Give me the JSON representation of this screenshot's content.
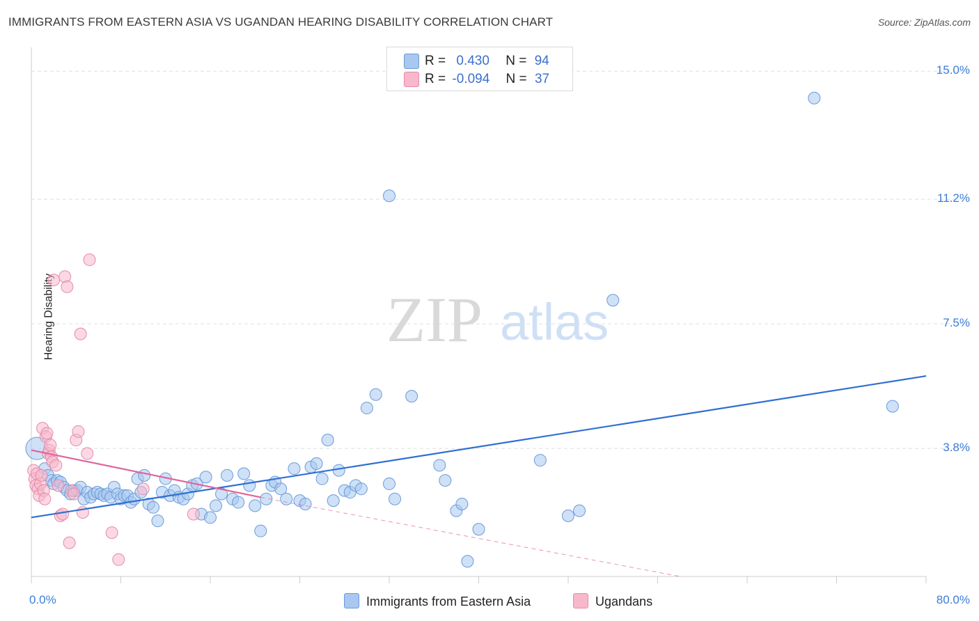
{
  "chart_data": {
    "type": "scatter",
    "title": "IMMIGRANTS FROM EASTERN ASIA VS UGANDAN HEARING DISABILITY CORRELATION CHART",
    "source": "Source: ZipAtlas.com",
    "watermark": {
      "zip": "ZIP",
      "atlas": "atlas"
    },
    "ylabel": "Hearing Disability",
    "xlim": [
      0,
      80
    ],
    "ylim": [
      0,
      15.5
    ],
    "yticks": [
      {
        "value": 3.8,
        "label": "3.8%"
      },
      {
        "value": 7.5,
        "label": "7.5%"
      },
      {
        "value": 11.2,
        "label": "11.2%"
      },
      {
        "value": 15.0,
        "label": "15.0%"
      }
    ],
    "xtick_labels": {
      "min": "0.0%",
      "max": "80.0%"
    },
    "legend": [
      {
        "r_label": "R =",
        "r_value": "0.430",
        "n_label": "N =",
        "n_value": "94",
        "color": "#a8c8f0",
        "stroke": "#6a9ad8"
      },
      {
        "r_label": "R =",
        "r_value": "-0.094",
        "n_label": "N =",
        "n_value": "37",
        "color": "#f7b8cc",
        "stroke": "#e58aa8"
      }
    ],
    "series": [
      {
        "name": "Immigrants from Eastern Asia",
        "fill": "#a8c8f0",
        "stroke": "#6a9ad8",
        "trend": {
          "x": [
            0,
            80
          ],
          "y": [
            1.75,
            5.95
          ],
          "color": "#2e6fd0"
        },
        "points": [
          [
            0.5,
            3.8
          ],
          [
            1.2,
            3.2
          ],
          [
            1.5,
            3.0
          ],
          [
            1.8,
            2.85
          ],
          [
            2.0,
            2.75
          ],
          [
            2.3,
            2.85
          ],
          [
            2.6,
            2.8
          ],
          [
            2.9,
            2.65
          ],
          [
            3.2,
            2.55
          ],
          [
            3.5,
            2.45
          ],
          [
            3.8,
            2.55
          ],
          [
            4.1,
            2.55
          ],
          [
            4.4,
            2.65
          ],
          [
            4.7,
            2.3
          ],
          [
            5.0,
            2.5
          ],
          [
            5.3,
            2.35
          ],
          [
            5.6,
            2.45
          ],
          [
            5.9,
            2.5
          ],
          [
            6.2,
            2.45
          ],
          [
            6.5,
            2.4
          ],
          [
            6.8,
            2.45
          ],
          [
            7.1,
            2.35
          ],
          [
            7.4,
            2.65
          ],
          [
            7.7,
            2.45
          ],
          [
            8.0,
            2.3
          ],
          [
            8.3,
            2.4
          ],
          [
            8.6,
            2.4
          ],
          [
            8.9,
            2.2
          ],
          [
            9.2,
            2.3
          ],
          [
            9.5,
            2.9
          ],
          [
            9.8,
            2.5
          ],
          [
            10.1,
            3.0
          ],
          [
            10.5,
            2.15
          ],
          [
            10.9,
            2.05
          ],
          [
            11.3,
            1.65
          ],
          [
            11.7,
            2.5
          ],
          [
            12.0,
            2.9
          ],
          [
            12.4,
            2.4
          ],
          [
            12.8,
            2.55
          ],
          [
            13.2,
            2.35
          ],
          [
            13.6,
            2.3
          ],
          [
            14.0,
            2.45
          ],
          [
            14.4,
            2.7
          ],
          [
            14.8,
            2.75
          ],
          [
            15.2,
            1.85
          ],
          [
            15.6,
            2.95
          ],
          [
            16.0,
            1.75
          ],
          [
            16.5,
            2.1
          ],
          [
            17.0,
            2.45
          ],
          [
            17.5,
            3.0
          ],
          [
            18.0,
            2.3
          ],
          [
            18.5,
            2.2
          ],
          [
            19.0,
            3.05
          ],
          [
            19.5,
            2.7
          ],
          [
            20.0,
            2.1
          ],
          [
            20.5,
            1.35
          ],
          [
            21.0,
            2.3
          ],
          [
            21.5,
            2.7
          ],
          [
            21.8,
            2.8
          ],
          [
            22.3,
            2.6
          ],
          [
            22.8,
            2.3
          ],
          [
            23.5,
            3.2
          ],
          [
            24.0,
            2.25
          ],
          [
            24.5,
            2.15
          ],
          [
            25.0,
            3.25
          ],
          [
            25.5,
            3.35
          ],
          [
            26.0,
            2.9
          ],
          [
            26.5,
            4.05
          ],
          [
            27.0,
            2.25
          ],
          [
            27.5,
            3.15
          ],
          [
            28.0,
            2.55
          ],
          [
            28.5,
            2.5
          ],
          [
            29.0,
            2.7
          ],
          [
            30.0,
            5.0
          ],
          [
            30.8,
            5.4
          ],
          [
            32.0,
            2.75
          ],
          [
            32.5,
            2.3
          ],
          [
            34.0,
            5.35
          ],
          [
            36.5,
            3.3
          ],
          [
            37.0,
            2.85
          ],
          [
            38.0,
            1.95
          ],
          [
            38.5,
            2.15
          ],
          [
            39.0,
            0.45
          ],
          [
            40.0,
            1.4
          ],
          [
            45.5,
            3.45
          ],
          [
            48.0,
            1.8
          ],
          [
            49.0,
            1.95
          ],
          [
            52.0,
            8.2
          ],
          [
            70.0,
            14.2
          ],
          [
            77.0,
            5.05
          ],
          [
            32.0,
            11.3
          ],
          [
            29.5,
            2.6
          ]
        ]
      },
      {
        "name": "Ugandans",
        "fill": "#f7b8cc",
        "stroke": "#e58aa8",
        "trend": {
          "x": [
            0,
            20.5
          ],
          "y": [
            3.75,
            2.35
          ],
          "color": "#e0649a"
        },
        "trend_ext": {
          "x": [
            20.5,
            58
          ],
          "y": [
            2.35,
            -0.2
          ]
        },
        "points": [
          [
            0.2,
            3.15
          ],
          [
            0.3,
            2.9
          ],
          [
            0.4,
            2.7
          ],
          [
            0.5,
            3.05
          ],
          [
            0.6,
            2.6
          ],
          [
            0.7,
            2.4
          ],
          [
            0.8,
            2.75
          ],
          [
            0.9,
            3.0
          ],
          [
            1.0,
            4.4
          ],
          [
            1.1,
            2.55
          ],
          [
            1.2,
            2.3
          ],
          [
            1.3,
            4.15
          ],
          [
            1.4,
            4.25
          ],
          [
            1.5,
            3.65
          ],
          [
            1.6,
            3.75
          ],
          [
            1.7,
            3.9
          ],
          [
            1.8,
            3.55
          ],
          [
            1.9,
            3.4
          ],
          [
            2.0,
            8.8
          ],
          [
            2.2,
            3.3
          ],
          [
            2.4,
            2.7
          ],
          [
            2.6,
            1.8
          ],
          [
            2.8,
            1.85
          ],
          [
            3.0,
            8.9
          ],
          [
            3.2,
            8.6
          ],
          [
            3.4,
            1.0
          ],
          [
            3.6,
            2.55
          ],
          [
            3.8,
            2.45
          ],
          [
            4.0,
            4.05
          ],
          [
            4.2,
            4.3
          ],
          [
            4.4,
            7.2
          ],
          [
            4.6,
            1.9
          ],
          [
            5.0,
            3.65
          ],
          [
            5.2,
            9.4
          ],
          [
            7.2,
            1.3
          ],
          [
            7.8,
            0.5
          ],
          [
            10.0,
            2.6
          ],
          [
            14.5,
            1.85
          ]
        ]
      }
    ]
  }
}
